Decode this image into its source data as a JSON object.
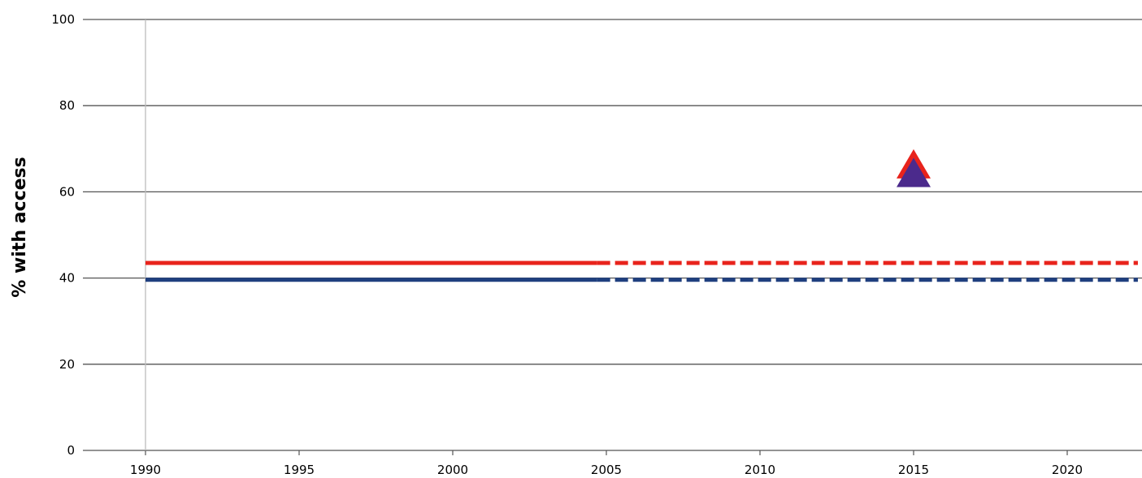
{
  "chart_data": {
    "type": "line",
    "title": "",
    "xlabel": "",
    "ylabel": "% with access",
    "xlim": [
      1990,
      2022.3
    ],
    "ylim": [
      0,
      100
    ],
    "xticks": [
      1990,
      1995,
      2000,
      2005,
      2010,
      2015,
      2020
    ],
    "yticks": [
      0,
      20,
      40,
      60,
      80,
      100
    ],
    "grid": "horizontal",
    "legend": "none",
    "series": [
      {
        "color": "#e8231c",
        "points": [
          [
            1990,
            43.5
          ],
          [
            2004.7,
            43.5
          ]
        ],
        "style": "solid"
      },
      {
        "color": "#e8231c",
        "points": [
          [
            2004.7,
            43.5
          ],
          [
            2022.3,
            43.5
          ]
        ],
        "style": "dashed"
      },
      {
        "color": "#1f3f7f",
        "points": [
          [
            1990,
            39.6
          ],
          [
            2004.7,
            39.6
          ]
        ],
        "style": "solid"
      },
      {
        "color": "#1f3f7f",
        "points": [
          [
            2004.7,
            39.6
          ],
          [
            2022.3,
            39.6
          ]
        ],
        "style": "dashed"
      }
    ],
    "markers": [
      {
        "shape": "triangle",
        "color": "#e8231c",
        "x": 2015,
        "y": 66.5
      },
      {
        "shape": "triangle",
        "color": "#4b2a8c",
        "x": 2015,
        "y": 64.5
      }
    ]
  }
}
